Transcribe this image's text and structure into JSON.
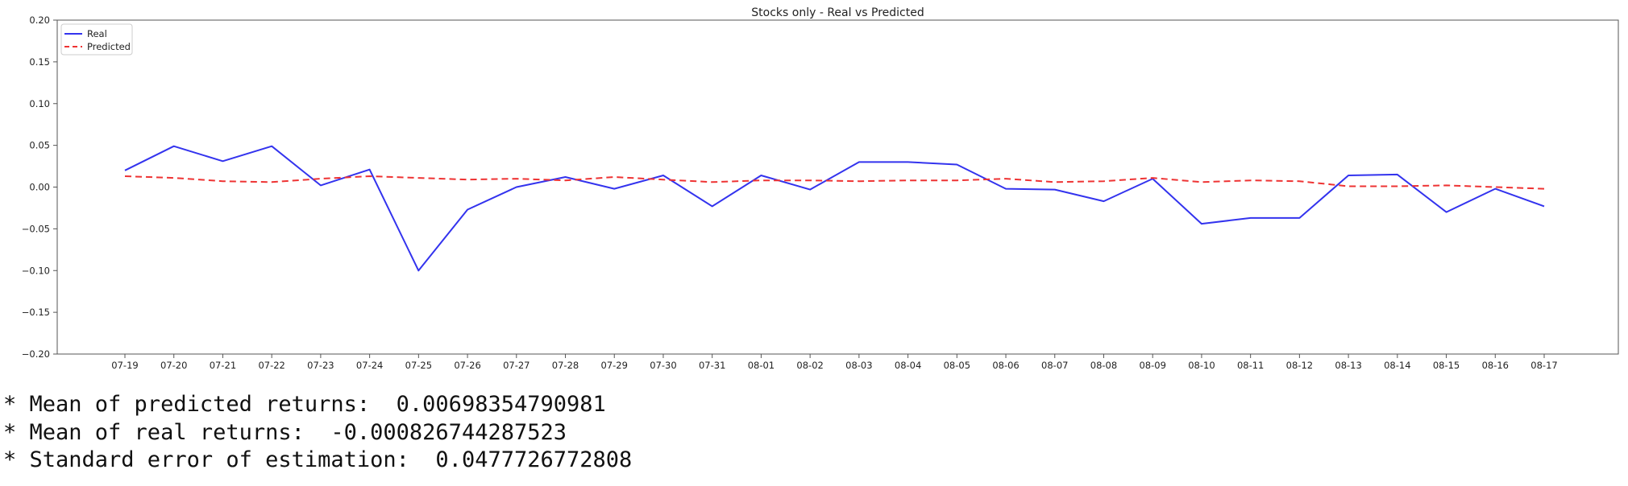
{
  "chart_data": {
    "type": "line",
    "title": "Stocks only - Real vs Predicted",
    "xlabel": "",
    "ylabel": "",
    "categories": [
      "07-19",
      "07-20",
      "07-21",
      "07-22",
      "07-23",
      "07-24",
      "07-25",
      "07-26",
      "07-27",
      "07-28",
      "07-29",
      "07-30",
      "07-31",
      "08-01",
      "08-02",
      "08-03",
      "08-04",
      "08-05",
      "08-06",
      "08-07",
      "08-08",
      "08-09",
      "08-10",
      "08-11",
      "08-12",
      "08-13",
      "08-14",
      "08-15",
      "08-16",
      "08-17"
    ],
    "ylim": [
      -0.2,
      0.2
    ],
    "yticks": [
      "−0.20",
      "−0.15",
      "−0.10",
      "−0.05",
      "0.00",
      "0.05",
      "0.10",
      "0.15",
      "0.20"
    ],
    "ytick_values": [
      -0.2,
      -0.15,
      -0.1,
      -0.05,
      0,
      0.05,
      0.1,
      0.15,
      0.2
    ],
    "grid": false,
    "legend_position": "top-left",
    "series": [
      {
        "name": "Real",
        "color": "#3333ee",
        "style": "solid",
        "values": [
          0.02,
          0.049,
          0.031,
          0.049,
          0.002,
          0.021,
          -0.1,
          -0.027,
          0.0,
          0.012,
          -0.002,
          0.014,
          -0.023,
          0.014,
          -0.003,
          0.03,
          0.03,
          0.027,
          -0.002,
          -0.003,
          -0.017,
          0.01,
          -0.044,
          -0.037,
          -0.037,
          0.014,
          0.015,
          -0.03,
          -0.002,
          -0.023
        ]
      },
      {
        "name": "Predicted",
        "color": "#ee3333",
        "style": "dashed",
        "values": [
          0.013,
          0.011,
          0.007,
          0.006,
          0.01,
          0.013,
          0.011,
          0.009,
          0.01,
          0.008,
          0.012,
          0.009,
          0.006,
          0.008,
          0.008,
          0.007,
          0.008,
          0.008,
          0.01,
          0.006,
          0.007,
          0.011,
          0.006,
          0.008,
          0.007,
          0.001,
          0.001,
          0.002,
          0.0,
          -0.002
        ]
      }
    ]
  },
  "stats": {
    "mean_predicted": "* Mean of predicted returns:  0.00698354790981",
    "mean_real": "* Mean of real returns:  -0.000826744287523",
    "std_error": "* Standard error of estimation:  0.0477726772808"
  }
}
